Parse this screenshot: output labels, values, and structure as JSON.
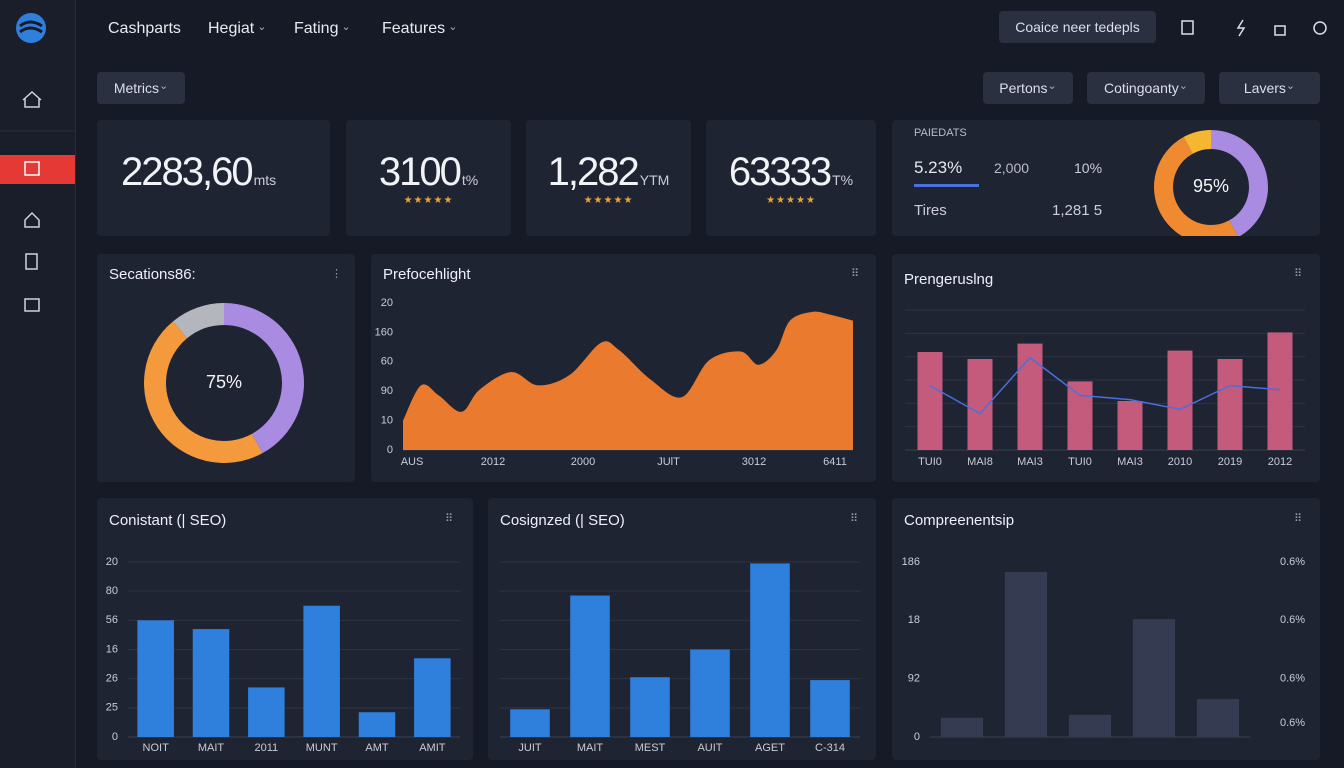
{
  "nav": {
    "items": [
      "Cashparts",
      "Hegiat",
      "Fating",
      "Features"
    ],
    "button": "Coaice neer tedepls"
  },
  "toolbar": {
    "left": "Metrics",
    "right": [
      "Pertons",
      "Cotingoanty",
      "Lavers"
    ]
  },
  "kpis": [
    {
      "value": "2283,60",
      "unit": "mts"
    },
    {
      "value": "3100",
      "unit": "t%",
      "stars": "★★★★★"
    },
    {
      "value": "1,282",
      "unit": "YTM",
      "stars": "★★★★★"
    },
    {
      "value": "63333",
      "unit": "T%",
      "stars": "★★★★★"
    }
  ],
  "panel": {
    "title": "PAIEDATS",
    "row1": [
      "5.23%",
      "2,000",
      "10%"
    ],
    "row2": [
      "Tires",
      "1,281 5"
    ]
  },
  "chart_data": [
    {
      "type": "pie",
      "title": "Secations86:",
      "center_label": "75%",
      "values": [
        42,
        47,
        11
      ],
      "colors": [
        "#a98be2",
        "#f59a3c",
        "#b3b6bd"
      ]
    },
    {
      "type": "area",
      "title": "Prefocehlight",
      "color": "#e97a2e",
      "x": [
        0,
        4,
        8,
        13,
        17,
        24,
        30,
        37,
        44,
        48,
        55,
        62,
        68,
        75,
        79,
        83,
        86,
        91,
        95,
        100
      ],
      "values": [
        20,
        44,
        37,
        26,
        41,
        53,
        44,
        51,
        73,
        68,
        48,
        36,
        61,
        67,
        58,
        68,
        88,
        94,
        92,
        88
      ],
      "xlim": [
        0,
        100
      ],
      "xticks": [
        {
          "value": 2,
          "label": "AUS"
        },
        {
          "value": 20,
          "label": "2012"
        },
        {
          "value": 40,
          "label": "2000"
        },
        {
          "value": 59,
          "label": "JUlT"
        },
        {
          "value": 78,
          "label": "3012"
        },
        {
          "value": 96,
          "label": "6411"
        }
      ],
      "ylim": [
        0,
        100
      ],
      "yticks": [
        0,
        {
          "value": 20,
          "label": "10"
        },
        {
          "value": 40,
          "label": "90"
        },
        60,
        {
          "value": 80,
          "label": "160"
        },
        {
          "value": 100,
          "label": "20"
        }
      ],
      "grid": false
    },
    {
      "type": "combo",
      "title": "Prengeruslng",
      "categories": [
        "TUI0",
        "MAI8",
        "MAI3",
        "TUI0",
        "MAI3",
        "2010",
        "2019",
        "2012"
      ],
      "series": [
        {
          "type": "bar",
          "color": "#c45a7c",
          "values": [
            70,
            65,
            76,
            49,
            35,
            71,
            65,
            84
          ]
        },
        {
          "type": "line",
          "color": "#4a6fe0",
          "values": [
            46,
            26,
            66,
            39,
            36,
            29,
            46,
            43
          ]
        }
      ],
      "ylim": [
        0,
        100
      ],
      "grid": true
    },
    {
      "type": "bar",
      "title": "Conistant (| SEO)",
      "color": "#2f7fdc",
      "categories": [
        "NOIT",
        "MAIT",
        "2011",
        "MUNT",
        "AMT",
        "AMIT"
      ],
      "values": [
        80,
        74,
        34,
        90,
        17,
        54
      ],
      "ylim": [
        0,
        120
      ],
      "yticks": [
        0,
        {
          "value": 20,
          "label": "25"
        },
        {
          "value": 40,
          "label": "26"
        },
        {
          "value": 60,
          "label": "16"
        },
        {
          "value": 80,
          "label": "56"
        },
        {
          "value": 100,
          "label": "80"
        },
        {
          "value": 120,
          "label": "20"
        }
      ],
      "grid": true
    },
    {
      "type": "bar",
      "title": "Cosignzed (| SEO)",
      "color": "#2f7fdc",
      "categories": [
        "JUIT",
        "MAIT",
        "MEST",
        "AUIT",
        "AGET",
        "C-314"
      ],
      "values": [
        19,
        97,
        41,
        60,
        119,
        39
      ],
      "ylim": [
        0,
        120
      ],
      "grid": true
    },
    {
      "type": "bar",
      "title": "Compreenentsip",
      "color": "#353c52",
      "values": [
        0.33,
        2.83,
        0.38,
        2.02,
        0.65
      ],
      "ylim": [
        0,
        3
      ],
      "yticks": [
        0,
        {
          "value": 1,
          "label": "92"
        },
        {
          "value": 2,
          "label": "18"
        },
        {
          "value": 3,
          "label": "186"
        }
      ],
      "y2lim": [
        0,
        3
      ],
      "y2ticks": [
        {
          "value": 0.24,
          "label": "0.6%"
        },
        {
          "value": 1,
          "label": "0.6%"
        },
        {
          "value": 2,
          "label": "0.6%"
        },
        {
          "value": 3,
          "label": "0.6%"
        }
      ],
      "grid": false
    },
    {
      "type": "pie",
      "center_label": "95%",
      "values": [
        42,
        50,
        8
      ],
      "colors": [
        "#a98be2",
        "#f08a30",
        "#f5b731"
      ]
    }
  ]
}
